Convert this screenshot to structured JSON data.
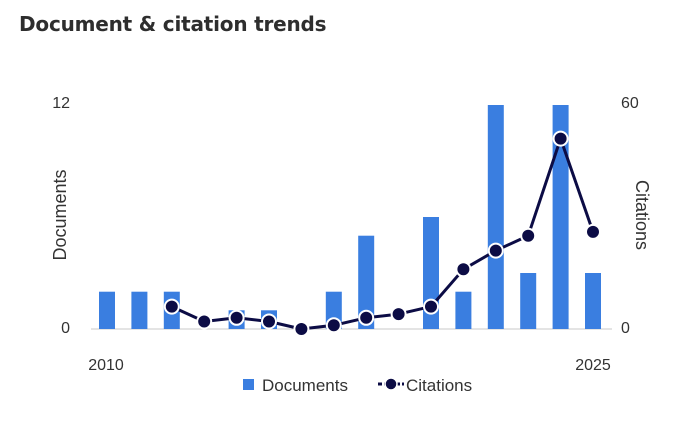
{
  "title": "Document & citation trends",
  "chart_data": {
    "type": "bar+line",
    "x": [
      2010,
      2011,
      2012,
      2013,
      2014,
      2015,
      2016,
      2017,
      2018,
      2019,
      2020,
      2021,
      2022,
      2023,
      2024,
      2025
    ],
    "x_tick_labels": [
      "2010",
      "2025"
    ],
    "series": [
      {
        "name": "Documents",
        "type": "bar",
        "axis": "left",
        "color": "#3a7ee0",
        "values": [
          2,
          2,
          2,
          null,
          1,
          1,
          null,
          2,
          5,
          null,
          6,
          2,
          12,
          3,
          12,
          3
        ]
      },
      {
        "name": "Citations",
        "type": "line",
        "axis": "right",
        "color": "#0c0c45",
        "values": [
          null,
          null,
          6,
          2,
          3,
          2,
          0,
          1,
          3,
          4,
          6,
          16,
          21,
          25,
          51,
          26
        ]
      }
    ],
    "y_left": {
      "label": "Documents",
      "lim": [
        0,
        12
      ],
      "ticks": [
        "0",
        "12"
      ]
    },
    "y_right": {
      "label": "Citations",
      "lim": [
        0,
        60
      ],
      "ticks": [
        "0",
        "60"
      ]
    },
    "legend": {
      "position": "bottom",
      "items": [
        "Documents",
        "Citations"
      ]
    }
  }
}
